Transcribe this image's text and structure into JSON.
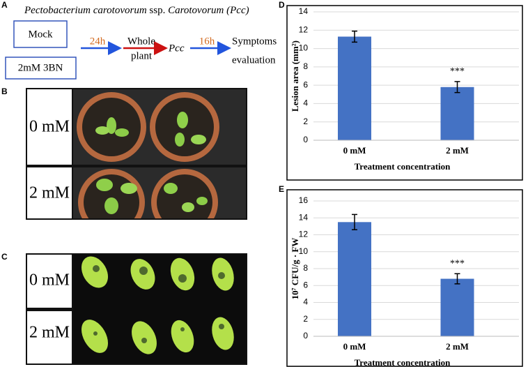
{
  "panel_a": {
    "label": "A",
    "title": [
      "Pectobacterium carotovorum",
      "ssp.",
      "Carotovorum (Pcc)"
    ],
    "groups": [
      "Mock",
      "2mM 3BN"
    ],
    "step1": "24h",
    "step2_top": "Whole",
    "step2_bottom": "plant",
    "pathogen": "Pcc",
    "step3": "16h",
    "outcome_top": "Symptoms",
    "outcome_bottom": "evaluation"
  },
  "panel_b": {
    "label": "B",
    "rows": [
      "0 mM",
      "2 mM"
    ]
  },
  "panel_c": {
    "label": "C",
    "rows": [
      "0 mM",
      "2 mM"
    ]
  },
  "chart_data": [
    {
      "type": "bar",
      "label": "D",
      "ylabel": "Lesion area (mm²)",
      "xlabel": "Treatment concentration",
      "categories": [
        "0 mM",
        "2 mM"
      ],
      "values": [
        11.3,
        5.8
      ],
      "errors": [
        0.6,
        0.6
      ],
      "color": "#4472c4",
      "ylim": [
        0,
        14
      ],
      "yticks": [
        0,
        2,
        4,
        6,
        8,
        10,
        12,
        14
      ],
      "grid": true,
      "annotations": [
        {
          "category": "2 mM",
          "text": "***"
        }
      ]
    },
    {
      "type": "bar",
      "label": "E",
      "ylabel": "10⁷ CFU/g · FW",
      "xlabel": "Treatment concentration",
      "categories": [
        "0 mM",
        "2 mM"
      ],
      "values": [
        13.5,
        6.8
      ],
      "errors": [
        0.9,
        0.6
      ],
      "color": "#4472c4",
      "ylim": [
        0,
        16
      ],
      "yticks": [
        0,
        2,
        4,
        6,
        8,
        10,
        12,
        14,
        16
      ],
      "grid": true,
      "annotations": [
        {
          "category": "2 mM",
          "text": "***"
        }
      ]
    }
  ]
}
